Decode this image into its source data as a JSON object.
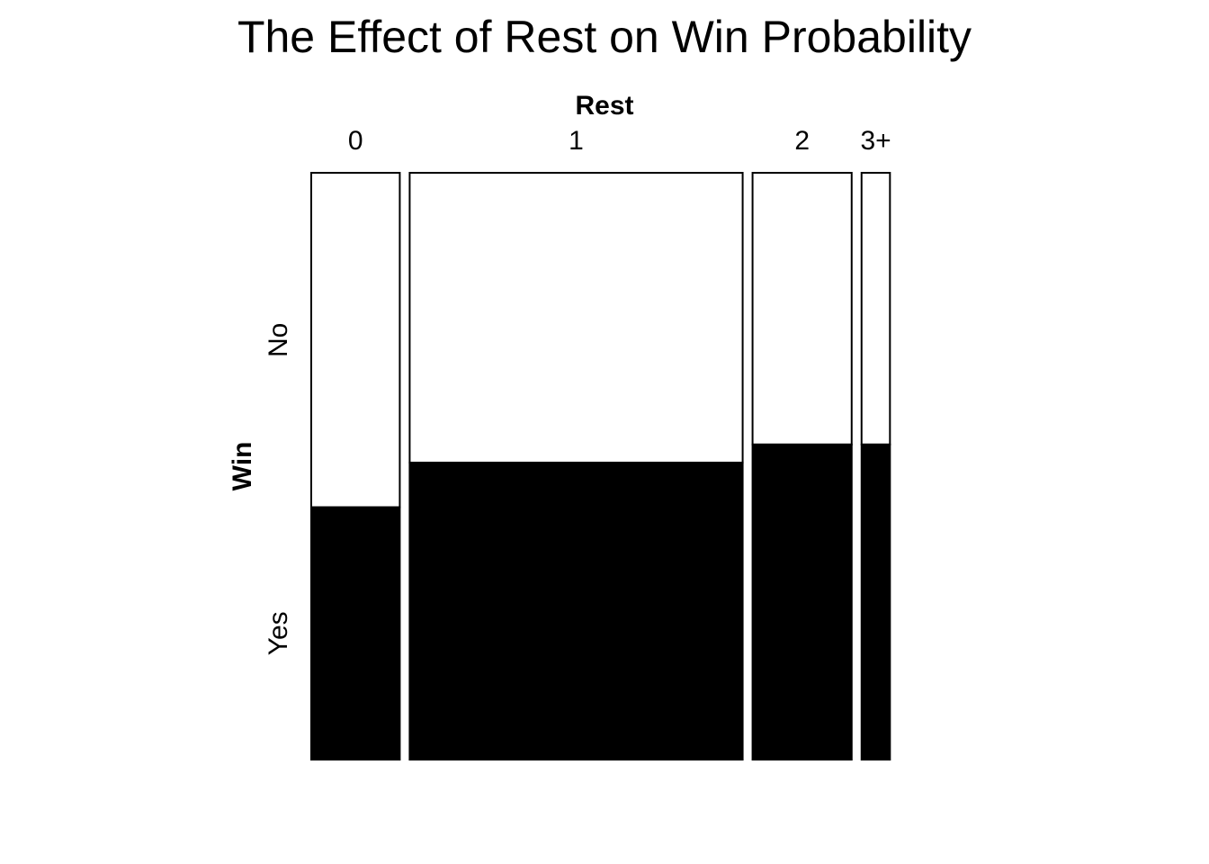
{
  "chart_data": {
    "type": "mosaic",
    "title": "The Effect of Rest on Win Probability",
    "xlabel": "Rest",
    "ylabel": "Win",
    "x_categories": [
      "0",
      "1",
      "2",
      "3+"
    ],
    "y_categories": [
      "No",
      "Yes"
    ],
    "column_proportions": [
      0.159,
      0.598,
      0.178,
      0.051
    ],
    "series": [
      {
        "name": "No",
        "color": "#ffffff",
        "values": [
          0.57,
          0.494,
          0.463,
          0.463
        ]
      },
      {
        "name": "Yes",
        "color": "#000000",
        "values": [
          0.43,
          0.506,
          0.537,
          0.537
        ]
      }
    ]
  }
}
